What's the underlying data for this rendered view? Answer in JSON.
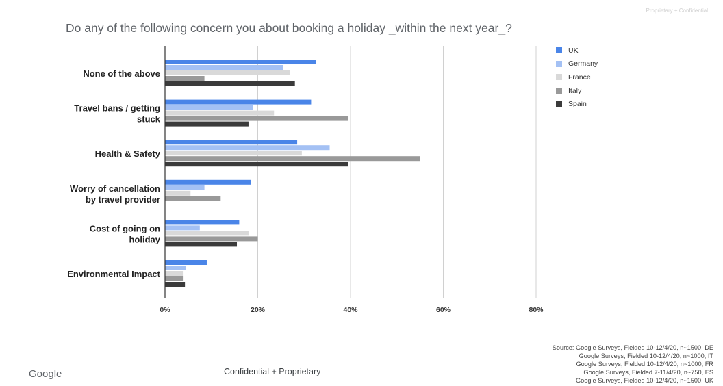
{
  "header": {
    "tag": "Proprietary + Confidential"
  },
  "footer": {
    "logo": "Google",
    "confidential": "Confidential + Proprietary",
    "source": [
      "Source: Google Surveys, Fielded 10-12/4/20, n~1500, DE",
      "Google Surveys, Fielded 10-12/4/20, n~1000, IT",
      "Google Surveys, Fielded 10-12/4/20, n~1000, FR",
      "Google Surveys, Fielded 7-11/4/20, n~750, ES",
      "Google Surveys, Fielded 10-12/4/20, n~1500, UK"
    ]
  },
  "chart_data": {
    "type": "bar",
    "orientation": "horizontal",
    "title": "Do any of the following concern you about booking a holiday _within the next year_?",
    "categories": [
      "None of the above",
      "Travel bans / getting stuck",
      "Health & Safety",
      "Worry of cancellation by travel provider",
      "Cost of going on holiday",
      "Environmental Impact"
    ],
    "series": [
      {
        "name": "UK",
        "color": "#4a85e8",
        "values": [
          32.5,
          31.5,
          28.5,
          18.5,
          16,
          9
        ]
      },
      {
        "name": "Germany",
        "color": "#a4c1f4",
        "values": [
          25.5,
          19,
          35.5,
          8.5,
          7.5,
          4.5
        ]
      },
      {
        "name": "France",
        "color": "#d9d9d9",
        "values": [
          27,
          23.5,
          29.5,
          5.5,
          18,
          4
        ]
      },
      {
        "name": "Italy",
        "color": "#999999",
        "values": [
          8.5,
          39.5,
          55,
          12,
          20,
          4
        ]
      },
      {
        "name": "Spain",
        "color": "#3b3b3b",
        "values": [
          28,
          18,
          39.5,
          0,
          15.5,
          4.3
        ]
      }
    ],
    "xlim": [
      0,
      80
    ],
    "xticks": [
      "0%",
      "20%",
      "40%",
      "60%",
      "80%"
    ],
    "grid": true,
    "legend_position": "right"
  }
}
